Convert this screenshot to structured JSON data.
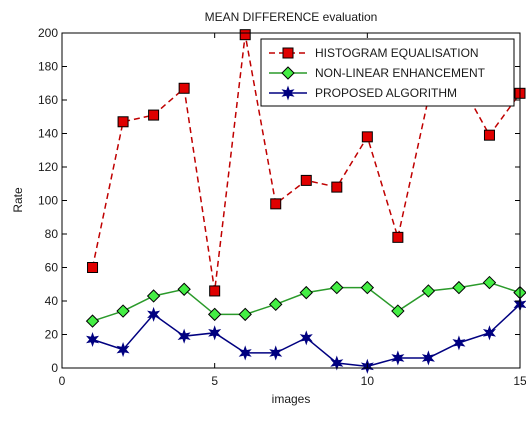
{
  "chart_data": {
    "type": "line",
    "title": "MEAN DIFFERENCE evaluation",
    "xlabel": "images",
    "ylabel": "Rate",
    "xlim": [
      0,
      15
    ],
    "ylim": [
      0,
      200
    ],
    "x_ticks": [
      0,
      5,
      10,
      15
    ],
    "y_ticks": [
      0,
      20,
      40,
      60,
      80,
      100,
      120,
      140,
      160,
      180,
      200
    ],
    "grid": false,
    "legend_position": "top-right",
    "x": [
      1,
      2,
      3,
      4,
      5,
      6,
      7,
      8,
      9,
      10,
      11,
      12,
      13,
      14,
      15
    ],
    "series": [
      {
        "name": "HISTOGRAM EQUALISATION",
        "color": "#c00000",
        "marker_color": "#e00000",
        "line_style": "dashed",
        "marker": "square",
        "values": [
          60,
          147,
          151,
          167,
          46,
          199,
          98,
          112,
          108,
          138,
          78,
          161,
          172,
          139,
          164
        ]
      },
      {
        "name": "NON-LINEAR ENHANCEMENT",
        "color": "#2a9a2a",
        "marker_color": "#44ee44",
        "line_style": "solid",
        "marker": "diamond",
        "values": [
          28,
          34,
          43,
          47,
          32,
          32,
          38,
          45,
          48,
          48,
          34,
          46,
          48,
          51,
          45
        ]
      },
      {
        "name": "PROPOSED ALGORITHM",
        "color": "#000080",
        "marker_color": "#000080",
        "line_style": "solid",
        "marker": "star",
        "values": [
          17,
          11,
          32,
          19,
          21,
          9,
          9,
          18,
          3,
          1,
          6,
          6,
          15,
          21,
          38
        ]
      }
    ]
  }
}
